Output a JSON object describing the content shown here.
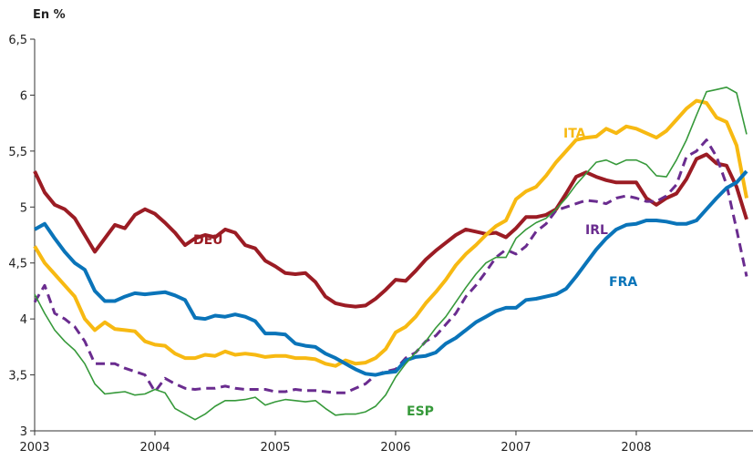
{
  "chart_data": {
    "type": "line",
    "y_label": "En %",
    "x": [
      2003,
      2003.0833,
      2003.1667,
      2003.25,
      2003.3333,
      2003.4167,
      2003.5,
      2003.5833,
      2003.6667,
      2003.75,
      2003.8333,
      2003.9167,
      2004,
      2004.0833,
      2004.1667,
      2004.25,
      2004.3333,
      2004.4167,
      2004.5,
      2004.5833,
      2004.6667,
      2004.75,
      2004.8333,
      2004.9167,
      2005,
      2005.0833,
      2005.1667,
      2005.25,
      2005.3333,
      2005.4167,
      2005.5,
      2005.5833,
      2005.6667,
      2005.75,
      2005.8333,
      2005.9167,
      2006,
      2006.0833,
      2006.1667,
      2006.25,
      2006.3333,
      2006.4167,
      2006.5,
      2006.5833,
      2006.6667,
      2006.75,
      2006.8333,
      2006.9167,
      2007,
      2007.0833,
      2007.1667,
      2007.25,
      2007.3333,
      2007.4167,
      2007.5,
      2007.5833,
      2007.6667,
      2007.75,
      2007.8333,
      2007.9167,
      2008,
      2008.0833,
      2008.1667,
      2008.25,
      2008.3333,
      2008.4167,
      2008.5,
      2008.5833,
      2008.6667,
      2008.75,
      2008.8333,
      2008.9167
    ],
    "series": [
      {
        "name": "DEU",
        "color": "#9b1c24",
        "width": 4,
        "dashed": false,
        "values": [
          5.32,
          5.13,
          5.02,
          4.98,
          4.9,
          4.75,
          4.6,
          4.72,
          4.84,
          4.81,
          4.93,
          4.98,
          4.94,
          4.86,
          4.77,
          4.66,
          4.72,
          4.75,
          4.73,
          4.8,
          4.77,
          4.66,
          4.63,
          4.52,
          4.47,
          4.41,
          4.4,
          4.41,
          4.33,
          4.2,
          4.14,
          4.12,
          4.11,
          4.12,
          4.18,
          4.26,
          4.35,
          4.34,
          4.43,
          4.53,
          4.61,
          4.68,
          4.75,
          4.8,
          4.78,
          4.76,
          4.77,
          4.73,
          4.81,
          4.91,
          4.91,
          4.93,
          4.98,
          5.12,
          5.27,
          5.31,
          5.27,
          5.24,
          5.22,
          5.22,
          5.22,
          5.08,
          5.02,
          5.08,
          5.12,
          5.25,
          5.43,
          5.47,
          5.39,
          5.37,
          5.18,
          4.89
        ]
      },
      {
        "name": "ITA",
        "color": "#f7b912",
        "width": 4,
        "dashed": false,
        "values": [
          4.65,
          4.5,
          4.4,
          4.3,
          4.2,
          4.0,
          3.9,
          3.97,
          3.91,
          3.9,
          3.89,
          3.8,
          3.77,
          3.76,
          3.69,
          3.65,
          3.65,
          3.68,
          3.67,
          3.71,
          3.68,
          3.69,
          3.68,
          3.66,
          3.67,
          3.67,
          3.65,
          3.65,
          3.64,
          3.6,
          3.58,
          3.63,
          3.6,
          3.61,
          3.65,
          3.73,
          3.88,
          3.93,
          4.02,
          4.14,
          4.24,
          4.35,
          4.48,
          4.58,
          4.66,
          4.75,
          4.83,
          4.88,
          5.07,
          5.14,
          5.18,
          5.28,
          5.4,
          5.5,
          5.6,
          5.62,
          5.63,
          5.7,
          5.66,
          5.72,
          5.7,
          5.66,
          5.62,
          5.68,
          5.78,
          5.88,
          5.95,
          5.93,
          5.8,
          5.76,
          5.55,
          5.08
        ]
      },
      {
        "name": "IRL",
        "color": "#6a2c8f",
        "width": 3,
        "dashed": true,
        "values": [
          4.15,
          4.3,
          4.05,
          4.0,
          3.93,
          3.8,
          3.6,
          3.6,
          3.6,
          3.56,
          3.53,
          3.5,
          3.35,
          3.47,
          3.42,
          3.38,
          3.37,
          3.38,
          3.38,
          3.4,
          3.38,
          3.37,
          3.37,
          3.37,
          3.35,
          3.35,
          3.37,
          3.36,
          3.36,
          3.35,
          3.34,
          3.34,
          3.38,
          3.42,
          3.5,
          3.53,
          3.55,
          3.65,
          3.7,
          3.8,
          3.85,
          3.95,
          4.05,
          4.2,
          4.3,
          4.42,
          4.55,
          4.62,
          4.58,
          4.65,
          4.78,
          4.85,
          4.97,
          5.0,
          5.03,
          5.06,
          5.05,
          5.03,
          5.08,
          5.1,
          5.08,
          5.05,
          5.05,
          5.1,
          5.2,
          5.45,
          5.5,
          5.6,
          5.45,
          5.2,
          4.8,
          4.38
        ]
      },
      {
        "name": "FRA",
        "color": "#0a74b9",
        "width": 4,
        "dashed": false,
        "values": [
          4.8,
          4.85,
          4.72,
          4.6,
          4.5,
          4.44,
          4.25,
          4.16,
          4.16,
          4.2,
          4.23,
          4.22,
          4.23,
          4.24,
          4.21,
          4.17,
          4.01,
          4.0,
          4.03,
          4.02,
          4.04,
          4.02,
          3.98,
          3.87,
          3.87,
          3.86,
          3.78,
          3.76,
          3.75,
          3.69,
          3.65,
          3.6,
          3.55,
          3.51,
          3.5,
          3.52,
          3.53,
          3.63,
          3.66,
          3.67,
          3.7,
          3.78,
          3.83,
          3.9,
          3.97,
          4.02,
          4.07,
          4.1,
          4.1,
          4.17,
          4.18,
          4.2,
          4.22,
          4.27,
          4.38,
          4.5,
          4.62,
          4.72,
          4.8,
          4.84,
          4.85,
          4.88,
          4.88,
          4.87,
          4.85,
          4.85,
          4.88,
          4.98,
          5.08,
          5.17,
          5.22,
          5.32
        ]
      },
      {
        "name": "ESP",
        "color": "#36993a",
        "width": 1.6,
        "dashed": false,
        "values": [
          4.22,
          4.05,
          3.9,
          3.8,
          3.72,
          3.6,
          3.42,
          3.33,
          3.34,
          3.35,
          3.32,
          3.33,
          3.37,
          3.34,
          3.2,
          3.15,
          3.1,
          3.15,
          3.22,
          3.27,
          3.27,
          3.28,
          3.3,
          3.23,
          3.26,
          3.28,
          3.27,
          3.26,
          3.27,
          3.2,
          3.14,
          3.15,
          3.15,
          3.17,
          3.22,
          3.32,
          3.48,
          3.6,
          3.7,
          3.8,
          3.92,
          4.02,
          4.15,
          4.28,
          4.4,
          4.5,
          4.55,
          4.55,
          4.72,
          4.8,
          4.86,
          4.9,
          4.98,
          5.08,
          5.2,
          5.3,
          5.4,
          5.42,
          5.38,
          5.42,
          5.42,
          5.38,
          5.28,
          5.27,
          5.42,
          5.6,
          5.82,
          6.03,
          6.05,
          6.07,
          6.02,
          5.65
        ]
      }
    ],
    "xlim": [
      2003,
      2008.97
    ],
    "xticks": [
      2003,
      2004,
      2005,
      2006,
      2007,
      2008
    ],
    "ylim": [
      3,
      6.5
    ],
    "yticks": [
      3,
      {
        "value": 3.5,
        "label": "3,5"
      },
      4,
      {
        "value": 4.5,
        "label": "4,5"
      },
      5,
      {
        "value": 5.5,
        "label": "5,5"
      },
      6,
      {
        "value": 6.5,
        "label": "6,5"
      }
    ]
  }
}
